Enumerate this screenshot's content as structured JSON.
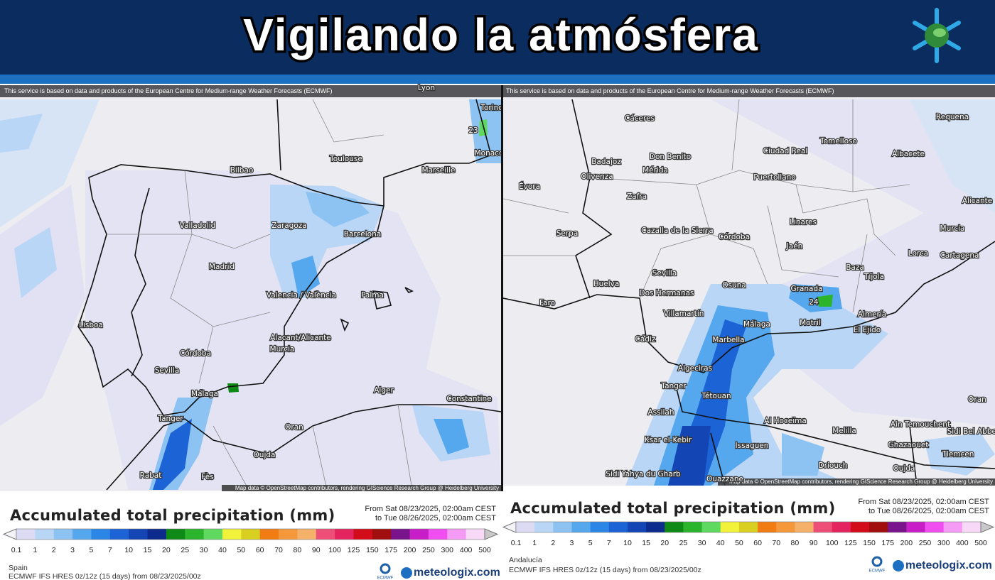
{
  "header": {
    "title": "Vigilando la atmósfera"
  },
  "colorbar_colors": [
    "#dcdbf3",
    "#b9d6f6",
    "#8cc3f2",
    "#55a8ee",
    "#2c86e6",
    "#1c63d6",
    "#1345b5",
    "#0d2b8c",
    "#108a17",
    "#2cb52c",
    "#5fd95f",
    "#f2f23a",
    "#d9cf20",
    "#f27c14",
    "#f5983c",
    "#f5b069",
    "#ee4f79",
    "#e4245e",
    "#d20d19",
    "#a00e0e",
    "#7a148c",
    "#c81ec8",
    "#f04ef0",
    "#f59af5",
    "#f7d8f7",
    "#c8c8c8"
  ],
  "panels": [
    {
      "credit": "This service is based on data and products of the European Centre for Medium-range Weather Forecasts (ECMWF)",
      "attribution": "Map data © OpenStreetMap contributors, rendering GIScience Research Group @ Heidelberg University",
      "marker": "23",
      "places": [
        "Lyon",
        "Torino",
        "Toulouse",
        "Marseille",
        "Monaco",
        "Bilbao",
        "Zaragoza",
        "Barcelona",
        "Valladolid",
        "Madrid",
        "Valencia / València",
        "Palma",
        "Lisboa",
        "Alacant/Alicante",
        "Murcia",
        "Córdoba",
        "Sevilla",
        "Málaga",
        "Tanger",
        "Alger",
        "Constantine",
        "Oran",
        "Oujda",
        "Rabat",
        "Fès"
      ],
      "legend": {
        "title": "Accumulated total precipitation (mm)",
        "from": "From Sat 08/23/2025, 02:00am CEST",
        "to": "to Tue 08/26/2025, 02:00am CEST",
        "levels": [
          0.1,
          1,
          2,
          3,
          5,
          7,
          10,
          15,
          20,
          25,
          30,
          40,
          50,
          60,
          70,
          80,
          90,
          100,
          125,
          150,
          175,
          200,
          250,
          300,
          400,
          500
        ]
      },
      "region": "Spain",
      "model": "ECMWF IFS HRES 0z/12z (15 days) from 08/23/2025/00z",
      "logo_ecmwf": "ECMWF",
      "logo_site": "meteologix.com"
    },
    {
      "credit": "This service is based on data and products of the European Centre for Medium-range Weather Forecasts (ECMWF)",
      "attribution": "Map data © OpenStreetMap contributors, rendering GIScience Research Group @ Heidelberg University",
      "marker": "24",
      "places": [
        "Cáceres",
        "Badajoz",
        "Don Benito",
        "Mérida",
        "Olivenza",
        "Évora",
        "Zafra",
        "Ciudad Real",
        "Tomelloso",
        "Albacete",
        "Requena",
        "Puertollano",
        "Linares",
        "Jaén",
        "Murcia",
        "Lorca",
        "Cartagena",
        "Alicante",
        "Córdoba",
        "Cazalla de la Sierra",
        "Serpa",
        "Sevilla",
        "Dos Hermanas",
        "Osuna",
        "Huelva",
        "Faro",
        "Baza",
        "Tíjola",
        "Granada",
        "Almería",
        "El Ejido",
        "Motril",
        "Málaga",
        "Marbella",
        "Villamartín",
        "Cádiz",
        "Algeciras",
        "Tanger",
        "Tétouan",
        "Assilah",
        "Al Hoceïma",
        "Melilla",
        "Ksar el-Kebir",
        "Issaguen",
        "Driouch",
        "Sidi Yahya du Gharb",
        "Ouazzane",
        "Oujda",
        "Ain Temouchent",
        "Sidi Bel Abbes",
        "Ghazaouet",
        "Tlemcen",
        "Oran"
      ],
      "legend": {
        "title": "Accumulated total precipitation (mm)",
        "from": "From Sat 08/23/2025, 02:00am CEST",
        "to": "to Tue 08/26/2025, 02:00am CEST",
        "levels": [
          0.1,
          1,
          2,
          3,
          5,
          7,
          10,
          15,
          20,
          25,
          30,
          40,
          50,
          60,
          70,
          80,
          90,
          100,
          125,
          150,
          175,
          200,
          250,
          300,
          400,
          500
        ]
      },
      "region": "Andalucía",
      "model": "ECMWF IFS HRES 0z/12z (15 days) from 08/23/2025/00z",
      "logo_ecmwf": "ECMWF",
      "logo_site": "meteologix.com"
    }
  ]
}
